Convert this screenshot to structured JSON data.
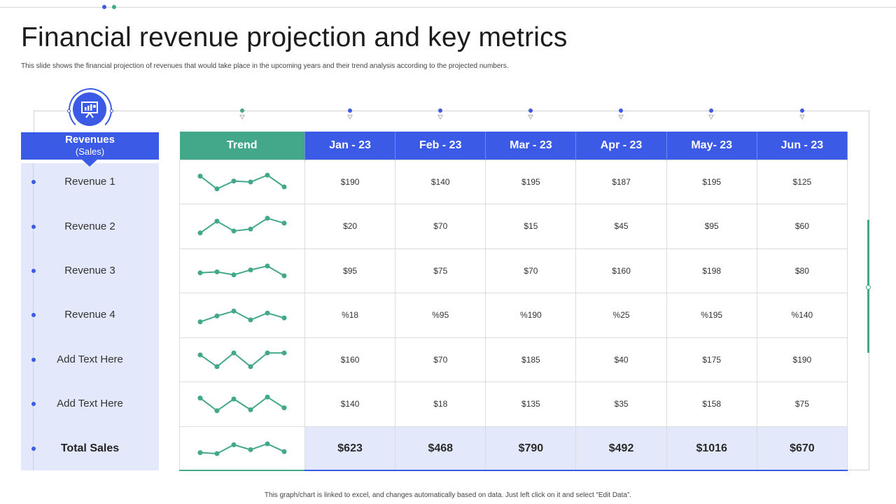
{
  "header": {
    "title": "Financial revenue projection  and key metrics",
    "subtitle": "This slide shows the financial projection of revenues that  would take place in  the upcoming years and their trend analysis  according to the projected numbers."
  },
  "revenues": {
    "heading": "Revenues",
    "subheading": "(Sales)",
    "rows": [
      "Revenue 1",
      "Revenue 2",
      "Revenue 3",
      "Revenue 4",
      "Add Text Here",
      "Add Text Here",
      "Total Sales"
    ],
    "icon": "presentation-chart-icon"
  },
  "table": {
    "columns": [
      "Trend",
      "Jan - 23",
      "Feb - 23",
      "Mar - 23",
      "Apr - 23",
      "May- 23",
      "Jun - 23"
    ],
    "rows": [
      {
        "values": [
          "$190",
          "$140",
          "$195",
          "$187",
          "$195",
          "$125"
        ],
        "trend": [
          0.2,
          0.85,
          0.45,
          0.5,
          0.15,
          0.75
        ]
      },
      {
        "values": [
          "$20",
          "$70",
          "$15",
          "$45",
          "$95",
          "$60"
        ],
        "trend": [
          0.85,
          0.25,
          0.75,
          0.65,
          0.1,
          0.35
        ]
      },
      {
        "values": [
          "$95",
          "$75",
          "$70",
          "$160",
          "$198",
          "$80"
        ],
        "trend": [
          0.6,
          0.55,
          0.7,
          0.45,
          0.25,
          0.75
        ]
      },
      {
        "values": [
          "%18",
          "%95",
          "%190",
          "%25",
          "%195",
          "%140"
        ],
        "trend": [
          0.85,
          0.55,
          0.3,
          0.75,
          0.4,
          0.65
        ]
      },
      {
        "values": [
          "$160",
          "$70",
          "$185",
          "$40",
          "$175",
          "$190"
        ],
        "trend": [
          0.25,
          0.85,
          0.15,
          0.85,
          0.15,
          0.15
        ]
      },
      {
        "values": [
          "$140",
          "$18",
          "$135",
          "$35",
          "$158",
          "$75"
        ],
        "trend": [
          0.2,
          0.85,
          0.25,
          0.8,
          0.15,
          0.7
        ]
      },
      {
        "values": [
          "$623",
          "$468",
          "$790",
          "$492",
          "$1016",
          "$670"
        ],
        "trend": [
          0.7,
          0.75,
          0.3,
          0.55,
          0.25,
          0.65
        ]
      }
    ]
  },
  "footnote": "This graph/chart is linked to excel, and changes automatically based on data.  Just left click on it and select “Edit Data”.",
  "colors": {
    "accent_blue": "#3b5be6",
    "accent_green": "#43a88a",
    "light_blue": "#e3e9fb"
  }
}
